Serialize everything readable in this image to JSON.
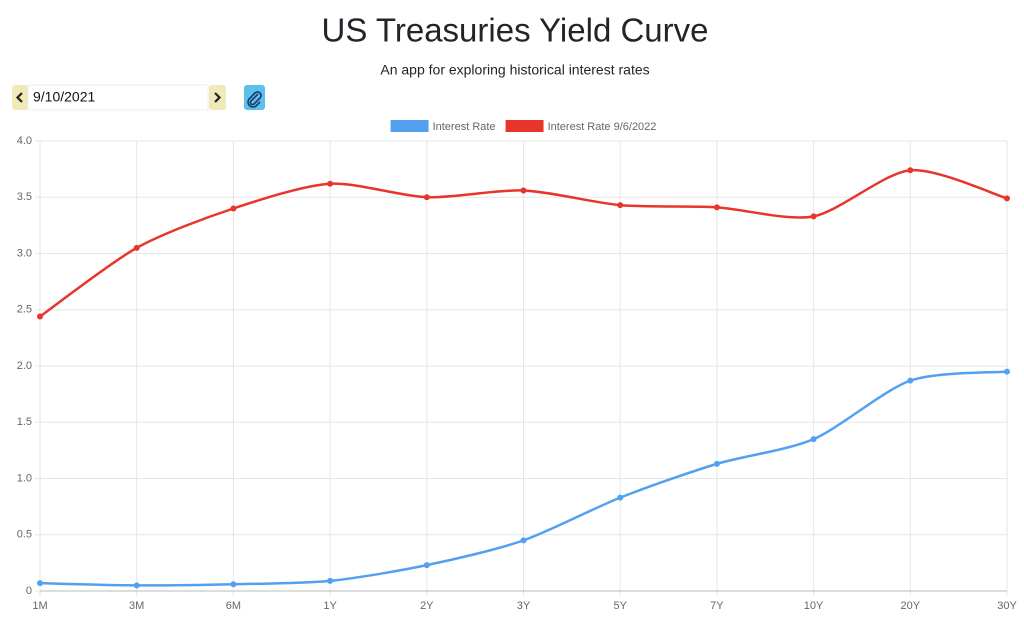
{
  "header": {
    "title": "US Treasuries Yield Curve",
    "subtitle": "An app for exploring historical interest rates"
  },
  "controls": {
    "date": "9/10/2021"
  },
  "chart_data": {
    "type": "line",
    "categories": [
      "1M",
      "3M",
      "6M",
      "1Y",
      "2Y",
      "3Y",
      "5Y",
      "7Y",
      "10Y",
      "20Y",
      "30Y"
    ],
    "series": [
      {
        "name": "Interest Rate",
        "color": "#54a0f0",
        "values": [
          0.07,
          0.05,
          0.06,
          0.09,
          0.23,
          0.45,
          0.83,
          1.13,
          1.35,
          1.87,
          1.95
        ]
      },
      {
        "name": "Interest Rate 9/6/2022",
        "color": "#e8352b",
        "values": [
          2.44,
          3.05,
          3.4,
          3.62,
          3.5,
          3.56,
          3.43,
          3.41,
          3.33,
          3.74,
          3.49
        ]
      }
    ],
    "ylim": [
      0,
      4
    ],
    "yticks": [
      0,
      0.5,
      {
        "value": 1,
        "label": "1.0"
      },
      1.5,
      {
        "value": 2,
        "label": "2.0"
      },
      2.5,
      {
        "value": 3,
        "label": "3.0"
      },
      3.5,
      {
        "value": 4,
        "label": "4.0"
      }
    ],
    "grid": true,
    "legend": "top"
  }
}
